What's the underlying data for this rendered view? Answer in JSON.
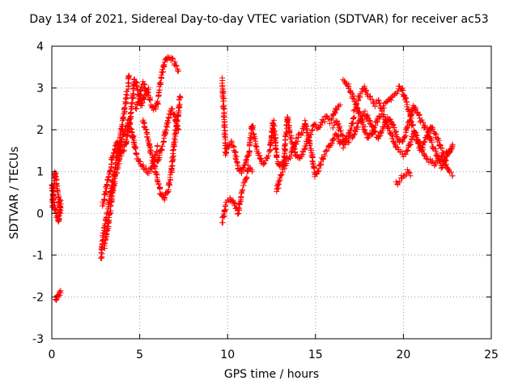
{
  "chart_data": {
    "type": "scatter",
    "title": "Day 134 of 2021, Sidereal Day-to-day VTEC variation (SDTVAR) for receiver ac53",
    "xlabel": "GPS time / hours",
    "ylabel": "SDTVAR / TECUs",
    "xlim": [
      0,
      25
    ],
    "ylim": [
      -3,
      4
    ],
    "xticks": [
      "0",
      "5",
      "10",
      "15",
      "20",
      "25"
    ],
    "yticks": [
      "-3",
      "-2",
      "-1",
      "0",
      "1",
      "2",
      "3",
      "4"
    ],
    "grid": true,
    "marker": "+",
    "marker_color": "#ff0000",
    "series": [
      {
        "name": "SDTVAR",
        "tracks": [
          [
            [
              0.0,
              0.1
            ],
            [
              0.1,
              0.5
            ],
            [
              0.2,
              1.0
            ],
            [
              0.3,
              0.6
            ],
            [
              0.4,
              0.3
            ],
            [
              0.5,
              0.0
            ]
          ],
          [
            [
              0.0,
              0.7
            ],
            [
              0.1,
              0.3
            ],
            [
              0.2,
              0.1
            ],
            [
              0.3,
              -0.1
            ],
            [
              0.4,
              -0.2
            ],
            [
              0.5,
              0.3
            ]
          ],
          [
            [
              0.2,
              -2.05
            ],
            [
              0.3,
              -2.0
            ],
            [
              0.4,
              -1.95
            ],
            [
              0.5,
              -1.85
            ]
          ],
          [
            [
              2.8,
              -1.1
            ],
            [
              2.9,
              -0.6
            ],
            [
              3.0,
              -0.3
            ],
            [
              3.2,
              0.1
            ],
            [
              3.4,
              0.6
            ],
            [
              3.6,
              1.1
            ],
            [
              3.8,
              1.6
            ],
            [
              4.0,
              2.1
            ],
            [
              4.2,
              2.6
            ],
            [
              4.4,
              3.3
            ]
          ],
          [
            [
              2.9,
              0.2
            ],
            [
              3.1,
              0.6
            ],
            [
              3.3,
              1.0
            ],
            [
              3.5,
              1.4
            ],
            [
              3.7,
              1.7
            ],
            [
              3.9,
              1.4
            ],
            [
              4.1,
              1.5
            ],
            [
              4.3,
              1.8
            ],
            [
              4.5,
              2.4
            ],
            [
              4.7,
              3.2
            ],
            [
              4.9,
              3.0
            ],
            [
              5.1,
              2.6
            ],
            [
              5.3,
              2.8
            ],
            [
              5.5,
              3.0
            ]
          ],
          [
            [
              3.0,
              -0.8
            ],
            [
              3.2,
              -0.3
            ],
            [
              3.4,
              0.3
            ],
            [
              3.6,
              0.9
            ],
            [
              3.8,
              1.2
            ],
            [
              4.0,
              1.8
            ],
            [
              4.2,
              2.0
            ],
            [
              4.4,
              2.2
            ],
            [
              4.6,
              1.9
            ],
            [
              4.8,
              1.4
            ],
            [
              5.0,
              1.2
            ],
            [
              5.2,
              1.1
            ],
            [
              5.4,
              1.0
            ],
            [
              5.6,
              1.0
            ],
            [
              5.8,
              1.2
            ],
            [
              6.0,
              1.6
            ]
          ],
          [
            [
              4.8,
              2.5
            ],
            [
              5.0,
              2.8
            ],
            [
              5.2,
              3.1
            ],
            [
              5.4,
              2.9
            ],
            [
              5.6,
              2.7
            ],
            [
              5.8,
              2.5
            ],
            [
              6.0,
              2.6
            ],
            [
              6.2,
              3.2
            ],
            [
              6.4,
              3.6
            ],
            [
              6.6,
              3.75
            ],
            [
              6.8,
              3.7
            ],
            [
              7.0,
              3.6
            ],
            [
              7.2,
              3.4
            ]
          ],
          [
            [
              5.2,
              2.2
            ],
            [
              5.4,
              1.9
            ],
            [
              5.6,
              1.5
            ],
            [
              5.8,
              1.2
            ],
            [
              6.0,
              0.8
            ],
            [
              6.2,
              0.5
            ],
            [
              6.4,
              0.35
            ],
            [
              6.6,
              0.5
            ],
            [
              6.8,
              1.0
            ],
            [
              7.0,
              1.8
            ],
            [
              7.2,
              2.4
            ],
            [
              7.3,
              2.8
            ]
          ],
          [
            [
              6.0,
              1.2
            ],
            [
              6.2,
              1.5
            ],
            [
              6.4,
              1.8
            ],
            [
              6.6,
              2.2
            ],
            [
              6.8,
              2.5
            ],
            [
              7.0,
              2.3
            ],
            [
              7.2,
              2.0
            ]
          ],
          [
            [
              9.7,
              3.2
            ],
            [
              9.75,
              2.7
            ],
            [
              9.8,
              2.3
            ],
            [
              9.85,
              1.8
            ],
            [
              9.9,
              1.4
            ],
            [
              10.0,
              1.6
            ],
            [
              10.2,
              1.7
            ],
            [
              10.4,
              1.5
            ],
            [
              10.6,
              1.1
            ],
            [
              10.8,
              1.0
            ],
            [
              11.0,
              1.2
            ],
            [
              11.2,
              1.4
            ],
            [
              11.4,
              2.1
            ],
            [
              11.6,
              1.6
            ],
            [
              11.8,
              1.4
            ],
            [
              12.0,
              1.2
            ],
            [
              12.2,
              1.3
            ],
            [
              12.4,
              1.5
            ],
            [
              12.6,
              2.2
            ],
            [
              12.8,
              1.3
            ],
            [
              13.0,
              1.1
            ],
            [
              13.2,
              1.2
            ],
            [
              13.4,
              2.3
            ],
            [
              13.6,
              1.8
            ],
            [
              13.8,
              1.5
            ],
            [
              14.0,
              1.3
            ],
            [
              14.2,
              1.4
            ],
            [
              14.4,
              1.6
            ],
            [
              14.6,
              1.8
            ],
            [
              14.8,
              2.0
            ],
            [
              15.0,
              2.1
            ],
            [
              15.2,
              2.0
            ],
            [
              15.4,
              2.2
            ],
            [
              15.6,
              2.3
            ],
            [
              15.8,
              2.2
            ],
            [
              16.0,
              2.3
            ],
            [
              16.2,
              2.5
            ],
            [
              16.4,
              2.6
            ]
          ],
          [
            [
              9.7,
              -0.2
            ],
            [
              9.8,
              0.0
            ],
            [
              9.9,
              0.2
            ],
            [
              10.0,
              0.3
            ],
            [
              10.2,
              0.35
            ],
            [
              10.4,
              0.2
            ],
            [
              10.6,
              0.0
            ],
            [
              10.8,
              0.5
            ],
            [
              11.0,
              0.8
            ],
            [
              11.2,
              1.1
            ],
            [
              11.4,
              1.0
            ]
          ],
          [
            [
              12.8,
              0.5
            ],
            [
              13.0,
              0.9
            ],
            [
              13.2,
              1.1
            ],
            [
              13.4,
              1.3
            ],
            [
              13.6,
              1.4
            ],
            [
              13.8,
              1.6
            ],
            [
              14.0,
              1.8
            ],
            [
              14.2,
              1.9
            ],
            [
              14.4,
              2.2
            ],
            [
              14.6,
              1.8
            ],
            [
              14.8,
              1.4
            ],
            [
              15.0,
              0.9
            ],
            [
              15.2,
              1.1
            ],
            [
              15.4,
              1.3
            ],
            [
              15.6,
              1.5
            ],
            [
              15.8,
              1.6
            ],
            [
              16.0,
              1.8
            ],
            [
              16.2,
              1.9
            ],
            [
              16.4,
              1.7
            ],
            [
              16.6,
              1.6
            ],
            [
              16.8,
              1.8
            ],
            [
              17.0,
              2.0
            ],
            [
              17.2,
              2.3
            ]
          ],
          [
            [
              16.6,
              3.2
            ],
            [
              16.8,
              3.1
            ],
            [
              17.0,
              2.9
            ],
            [
              17.2,
              2.7
            ],
            [
              17.4,
              2.5
            ],
            [
              17.6,
              2.3
            ],
            [
              17.8,
              2.0
            ],
            [
              18.0,
              1.8
            ],
            [
              18.2,
              1.9
            ],
            [
              18.4,
              2.1
            ],
            [
              18.6,
              2.3
            ],
            [
              18.8,
              2.4
            ],
            [
              19.0,
              2.2
            ],
            [
              19.2,
              2.0
            ],
            [
              19.4,
              1.8
            ],
            [
              19.6,
              1.6
            ],
            [
              19.8,
              1.5
            ],
            [
              20.0,
              1.4
            ],
            [
              20.2,
              1.5
            ],
            [
              20.4,
              1.7
            ],
            [
              20.6,
              1.9
            ],
            [
              20.8,
              1.8
            ],
            [
              21.0,
              1.6
            ],
            [
              21.2,
              1.4
            ],
            [
              21.4,
              1.3
            ],
            [
              21.6,
              1.2
            ],
            [
              21.8,
              1.2
            ],
            [
              22.0,
              1.3
            ],
            [
              22.2,
              1.4
            ],
            [
              22.4,
              1.2
            ],
            [
              22.6,
              1.0
            ],
            [
              22.8,
              0.9
            ]
          ],
          [
            [
              17.2,
              2.5
            ],
            [
              17.4,
              2.7
            ],
            [
              17.6,
              2.9
            ],
            [
              17.8,
              3.0
            ],
            [
              18.0,
              2.8
            ],
            [
              18.2,
              2.7
            ],
            [
              18.4,
              2.6
            ],
            [
              18.6,
              2.7
            ],
            [
              18.8,
              2.5
            ],
            [
              19.0,
              2.6
            ],
            [
              19.2,
              2.7
            ],
            [
              19.4,
              2.8
            ],
            [
              19.6,
              2.9
            ],
            [
              19.8,
              3.05
            ],
            [
              20.0,
              2.9
            ],
            [
              20.2,
              2.6
            ],
            [
              20.4,
              2.3
            ],
            [
              20.6,
              2.0
            ],
            [
              20.8,
              1.7
            ],
            [
              21.0,
              1.5
            ],
            [
              21.2,
              1.7
            ],
            [
              21.4,
              1.9
            ],
            [
              21.6,
              2.1
            ],
            [
              21.8,
              1.9
            ],
            [
              22.0,
              1.7
            ],
            [
              22.2,
              1.5
            ],
            [
              22.4,
              1.4
            ],
            [
              22.6,
              1.5
            ],
            [
              22.8,
              1.6
            ]
          ],
          [
            [
              18.0,
              2.3
            ],
            [
              18.2,
              2.1
            ],
            [
              18.4,
              1.9
            ],
            [
              18.6,
              1.8
            ],
            [
              18.8,
              2.0
            ],
            [
              19.0,
              2.2
            ],
            [
              19.2,
              2.3
            ],
            [
              19.4,
              2.1
            ],
            [
              19.6,
              1.9
            ],
            [
              19.8,
              1.7
            ],
            [
              20.0,
              1.8
            ],
            [
              20.2,
              2.0
            ],
            [
              20.4,
              2.3
            ],
            [
              20.6,
              2.6
            ],
            [
              20.8,
              2.4
            ],
            [
              21.0,
              2.2
            ],
            [
              21.2,
              2.1
            ],
            [
              21.4,
              1.9
            ],
            [
              21.6,
              1.7
            ],
            [
              21.8,
              1.5
            ],
            [
              22.0,
              1.3
            ],
            [
              22.2,
              1.1
            ],
            [
              22.4,
              1.3
            ],
            [
              22.6,
              1.5
            ],
            [
              22.8,
              1.65
            ]
          ],
          [
            [
              19.6,
              0.7
            ],
            [
              19.8,
              0.8
            ],
            [
              20.0,
              0.9
            ],
            [
              20.2,
              1.0
            ],
            [
              20.4,
              0.9
            ]
          ],
          [
            [
              16.0,
              2.1
            ],
            [
              16.2,
              2.2
            ],
            [
              16.4,
              2.0
            ],
            [
              16.6,
              1.8
            ],
            [
              16.8,
              1.7
            ],
            [
              17.0,
              1.8
            ],
            [
              17.2,
              1.9
            ],
            [
              17.4,
              2.1
            ],
            [
              17.6,
              2.3
            ],
            [
              17.8,
              2.4
            ],
            [
              18.0,
              2.2
            ]
          ]
        ]
      }
    ]
  }
}
